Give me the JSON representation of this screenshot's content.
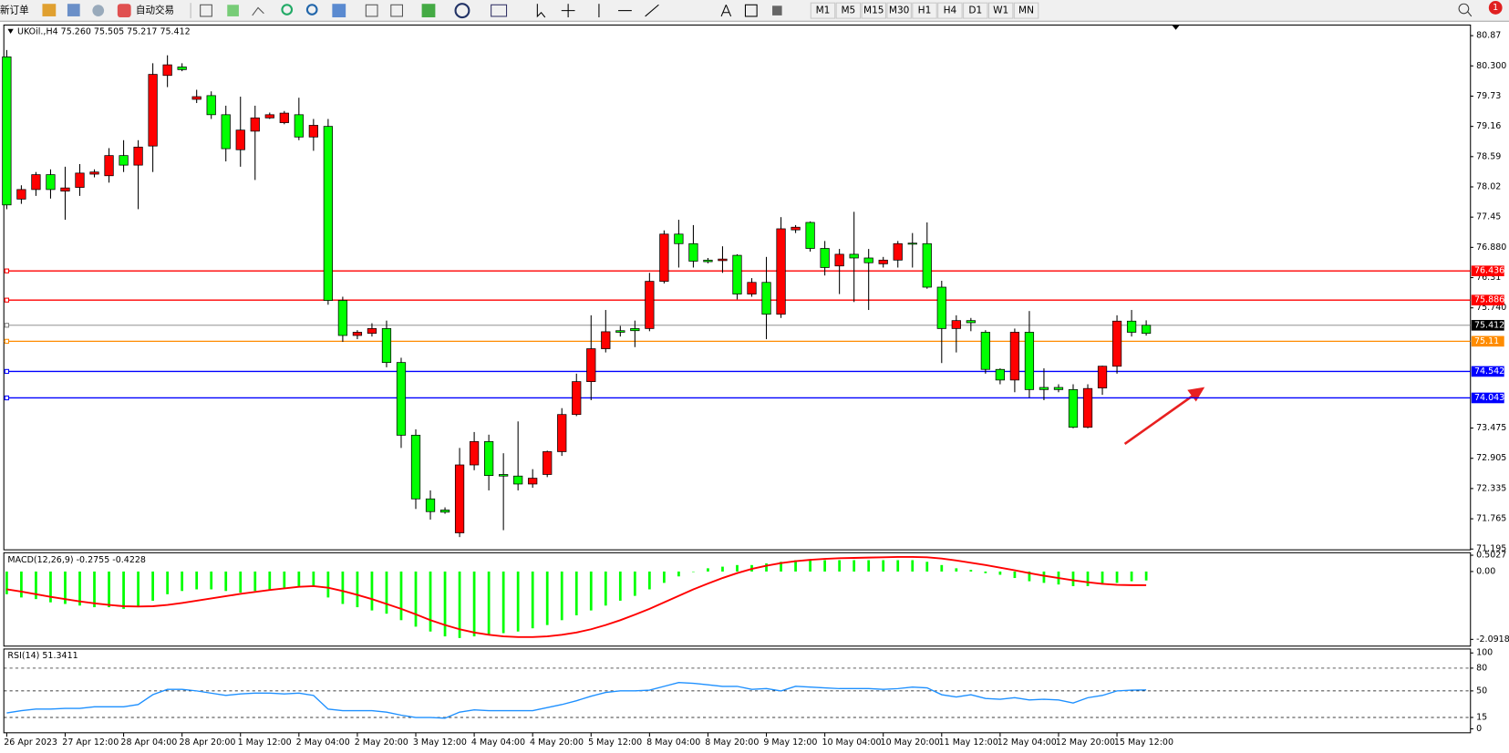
{
  "toolbar": {
    "items": [
      "新订单",
      "自动交易"
    ],
    "timeframes": [
      "M1",
      "M5",
      "M15",
      "M30",
      "H1",
      "H4",
      "D1",
      "W1",
      "MN"
    ],
    "badge": "1"
  },
  "chart_data": [
    {
      "type": "candlestick",
      "title": "UKOil.,H4  75.260 75.505 75.217 75.412",
      "categories": [
        "26 Apr 2023",
        null,
        null,
        null,
        "27 Apr 12:00",
        null,
        null,
        null,
        "28 Apr 04:00",
        null,
        null,
        null,
        "28 Apr 20:00",
        null,
        null,
        null,
        "1 May 12:00",
        null,
        null,
        null,
        "2 May 04:00",
        null,
        null,
        null,
        "2 May 20:00",
        null,
        null,
        null,
        "3 May 12:00",
        null,
        null,
        null,
        "4 May 04:00",
        null,
        null,
        null,
        "4 May 20:00",
        null,
        null,
        null,
        "5 May 12:00",
        null,
        null,
        null,
        "8 May 04:00",
        null,
        null,
        null,
        "8 May 20:00",
        null,
        null,
        null,
        "9 May 12:00",
        null,
        null,
        null,
        "10 May 04:00",
        null,
        null,
        null,
        "10 May 20:00",
        null,
        null,
        null,
        "11 May 12:00",
        null,
        null,
        null,
        "12 May 04:00",
        null,
        null,
        null,
        "12 May 20:00",
        null,
        null,
        null,
        "15 May 12:00",
        null,
        null
      ],
      "open": [
        77.68,
        77.97,
        78.25,
        77.97,
        78.0,
        78.28,
        78.3,
        78.61,
        78.43,
        78.77,
        80.14,
        80.32,
        80.23,
        79.72,
        79.38,
        78.74,
        79.09,
        79.32,
        79.38,
        79.41,
        78.96,
        79.18,
        75.88,
        75.22,
        75.28,
        75.35,
        74.71,
        73.34,
        72.14,
        71.9,
        71.89,
        72.78,
        73.22,
        72.58,
        72.57,
        72.42,
        72.53,
        73.03,
        73.73,
        74.35,
        74.97,
        75.29,
        75.28,
        75.31,
        76.24,
        77.13,
        76.95,
        76.62,
        76.61,
        76.66,
        76.0,
        76.22,
        75.62,
        77.23,
        77.26,
        76.86,
        76.5,
        76.75,
        76.68,
        76.59,
        76.64,
        76.95,
        76.94,
        76.13,
        75.35,
        75.5,
        75.46,
        74.58,
        74.38,
        75.28,
        74.2,
        74.2,
        74.2,
        73.49,
        74.22,
        74.64,
        75.49,
        75.28,
        75.26
      ],
      "high": [
        80.6,
        78.05,
        78.3,
        78.35,
        78.4,
        78.45,
        78.35,
        78.75,
        78.9,
        78.9,
        80.35,
        80.5,
        80.35,
        79.85,
        79.82,
        79.55,
        79.72,
        79.55,
        79.42,
        79.45,
        79.7,
        79.3,
        79.3,
        75.95,
        75.32,
        75.45,
        75.5,
        74.8,
        73.45,
        72.3,
        71.98,
        73.1,
        73.4,
        73.35,
        73.0,
        73.6,
        72.7,
        73.05,
        73.85,
        74.5,
        75.6,
        75.7,
        75.4,
        75.5,
        76.4,
        77.2,
        77.4,
        77.3,
        76.68,
        76.9,
        76.75,
        76.3,
        76.7,
        77.45,
        77.3,
        77.37,
        77.0,
        76.85,
        77.55,
        76.85,
        76.7,
        77.0,
        77.15,
        77.35,
        76.25,
        75.6,
        75.55,
        75.32,
        74.6,
        75.35,
        75.68,
        74.6,
        74.3,
        74.3,
        74.3,
        74.65,
        75.6,
        75.7,
        75.505
      ],
      "low": [
        77.6,
        77.7,
        77.85,
        77.8,
        77.4,
        77.85,
        78.2,
        78.1,
        78.3,
        77.6,
        78.3,
        79.9,
        80.2,
        79.6,
        79.3,
        78.5,
        78.4,
        78.15,
        79.3,
        79.2,
        78.9,
        78.7,
        75.8,
        75.1,
        75.15,
        75.2,
        74.62,
        73.1,
        71.95,
        71.75,
        71.86,
        71.42,
        72.68,
        72.3,
        71.55,
        72.3,
        72.35,
        72.55,
        72.95,
        73.7,
        74.0,
        74.9,
        75.2,
        75.0,
        75.3,
        76.2,
        76.5,
        76.5,
        76.58,
        76.4,
        75.9,
        75.95,
        75.15,
        75.55,
        77.15,
        76.8,
        76.35,
        76.0,
        75.85,
        75.7,
        76.5,
        76.5,
        76.5,
        76.1,
        74.7,
        74.9,
        75.3,
        74.5,
        74.3,
        74.15,
        74.05,
        74.0,
        74.15,
        73.47,
        73.47,
        74.1,
        74.5,
        75.2,
        75.217
      ],
      "close": [
        80.47,
        77.79,
        77.97,
        78.25,
        77.94,
        78.01,
        78.26,
        78.23,
        78.61,
        78.43,
        78.79,
        80.12,
        80.28,
        79.67,
        79.74,
        79.38,
        78.72,
        79.07,
        79.32,
        79.23,
        79.38,
        78.96,
        79.16,
        75.88,
        75.22,
        75.26,
        75.35,
        74.71,
        73.34,
        72.14,
        71.93,
        71.5,
        72.78,
        73.22,
        72.6,
        72.57,
        72.42,
        72.6,
        73.03,
        73.73,
        74.35,
        74.97,
        75.31,
        75.35,
        75.35,
        76.24,
        77.13,
        76.95,
        76.64,
        76.63,
        76.73,
        76.0,
        76.22,
        75.62,
        77.21,
        77.35,
        76.86,
        76.53,
        76.75,
        76.68,
        76.57,
        76.64,
        76.96,
        76.95,
        76.13,
        75.35,
        75.5,
        75.28,
        74.58,
        74.38,
        75.28,
        74.24,
        74.24,
        74.2,
        73.49,
        74.23,
        74.64,
        75.49,
        75.412
      ],
      "up_color": "#00ff00",
      "down_color": "#ff0000",
      "ylim": [
        71.18,
        81.07
      ],
      "yticks": [
        80.87,
        {
          "value": 80.3,
          "label": "80.300"
        },
        79.73,
        79.16,
        78.59,
        78.02,
        77.45,
        {
          "value": 76.88,
          "label": "76.880"
        },
        76.31,
        {
          "value": 75.74,
          "label": "75.740"
        },
        73.475,
        72.905,
        72.335,
        71.765,
        71.195
      ],
      "hlines": [
        {
          "value": 76.436,
          "color": "#ff0000"
        },
        {
          "value": 75.886,
          "color": "#ff0000"
        },
        {
          "value": 75.412,
          "color": "#808080"
        },
        {
          "value": 75.11,
          "color": "#ff8c00"
        },
        {
          "value": 74.542,
          "color": "#0000ff"
        },
        {
          "value": 74.043,
          "color": "#0000ff"
        }
      ]
    },
    {
      "type": "macd",
      "title": "MACD(12,26,9) -0.2755 -0.4228",
      "histogram": {
        "color": "#00ff00",
        "values": [
          -0.7,
          -0.8,
          -0.85,
          -0.95,
          -1.0,
          -1.05,
          -1.1,
          -1.1,
          -1.15,
          -1.1,
          -0.9,
          -0.7,
          -0.6,
          -0.55,
          -0.55,
          -0.6,
          -0.65,
          -0.6,
          -0.55,
          -0.5,
          -0.45,
          -0.45,
          -0.8,
          -1.0,
          -1.1,
          -1.2,
          -1.3,
          -1.5,
          -1.7,
          -1.85,
          -2.0,
          -2.05,
          -2.0,
          -1.95,
          -1.9,
          -1.85,
          -1.75,
          -1.65,
          -1.5,
          -1.35,
          -1.2,
          -1.05,
          -0.9,
          -0.75,
          -0.55,
          -0.35,
          -0.15,
          0.0,
          0.1,
          0.15,
          0.2,
          0.2,
          0.25,
          0.3,
          0.35,
          0.35,
          0.35,
          0.35,
          0.35,
          0.35,
          0.35,
          0.35,
          0.35,
          0.3,
          0.2,
          0.1,
          0.05,
          -0.05,
          -0.1,
          -0.2,
          -0.3,
          -0.35,
          -0.4,
          -0.45,
          -0.45,
          -0.4,
          -0.35,
          -0.3,
          -0.2755
        ]
      },
      "signal": {
        "color": "#ff0000",
        "values": [
          -0.55,
          -0.62,
          -0.7,
          -0.78,
          -0.85,
          -0.92,
          -0.98,
          -1.03,
          -1.07,
          -1.08,
          -1.07,
          -1.03,
          -0.97,
          -0.9,
          -0.83,
          -0.76,
          -0.69,
          -0.63,
          -0.57,
          -0.52,
          -0.47,
          -0.45,
          -0.5,
          -0.6,
          -0.72,
          -0.85,
          -1.0,
          -1.15,
          -1.32,
          -1.5,
          -1.65,
          -1.78,
          -1.88,
          -1.95,
          -2.0,
          -2.02,
          -2.02,
          -2.0,
          -1.95,
          -1.88,
          -1.78,
          -1.65,
          -1.5,
          -1.33,
          -1.15,
          -0.95,
          -0.75,
          -0.55,
          -0.37,
          -0.2,
          -0.05,
          0.08,
          0.18,
          0.26,
          0.32,
          0.36,
          0.39,
          0.41,
          0.42,
          0.43,
          0.44,
          0.45,
          0.45,
          0.44,
          0.4,
          0.34,
          0.27,
          0.2,
          0.12,
          0.04,
          -0.05,
          -0.13,
          -0.2,
          -0.27,
          -0.33,
          -0.38,
          -0.41,
          -0.42,
          -0.4228
        ]
      },
      "ylim": [
        -2.3,
        0.58
      ],
      "yticks": [
        0.5027,
        {
          "value": 0,
          "label": "0.00"
        },
        -2.0918
      ]
    },
    {
      "type": "line",
      "title": "RSI(14) 51.3411",
      "color": "#1e90ff",
      "values": [
        21,
        24,
        26,
        26,
        27,
        27,
        29,
        29,
        29,
        32,
        45,
        52,
        52,
        50,
        47,
        44,
        46,
        47,
        47,
        46,
        47,
        44,
        26,
        24,
        24,
        24,
        22,
        18,
        15,
        15,
        14,
        22,
        25,
        24,
        24,
        24,
        24,
        28,
        32,
        37,
        43,
        48,
        50,
        50,
        51,
        56,
        61,
        60,
        58,
        56,
        56,
        52,
        53,
        50,
        56,
        55,
        54,
        53,
        53,
        53,
        52,
        53,
        55,
        54,
        45,
        42,
        45,
        40,
        39,
        41,
        38,
        39,
        38,
        34,
        41,
        44,
        50,
        51,
        51.3411
      ],
      "ylim": [
        -5.2,
        105.2
      ],
      "yticks": [
        100,
        80,
        50,
        15,
        0
      ]
    }
  ]
}
